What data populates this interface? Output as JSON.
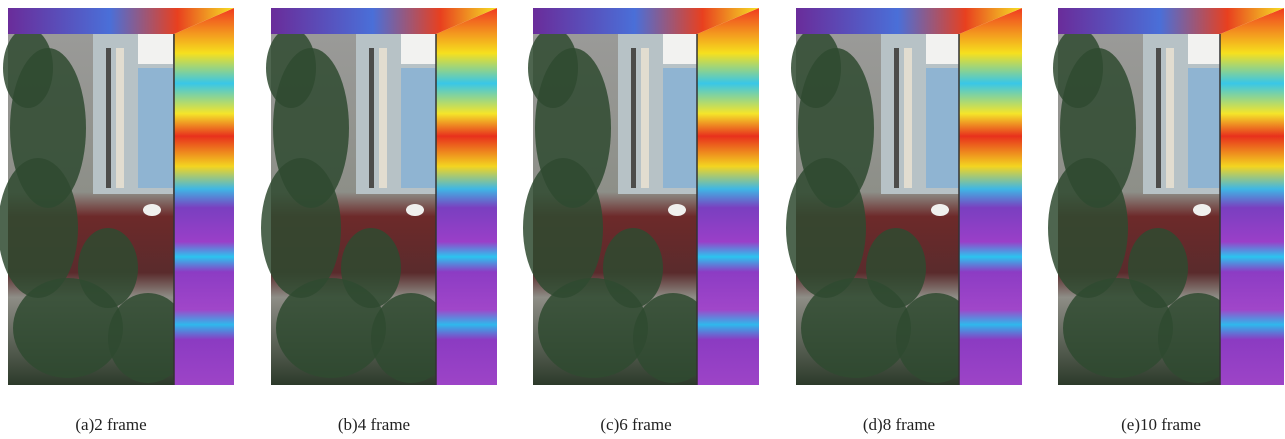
{
  "panels": [
    {
      "caption": "(a)2 frame"
    },
    {
      "caption": "(b)4 frame"
    },
    {
      "caption": "(c)6 frame"
    },
    {
      "caption": "(d)8 frame"
    },
    {
      "caption": "(e)10 frame"
    }
  ]
}
